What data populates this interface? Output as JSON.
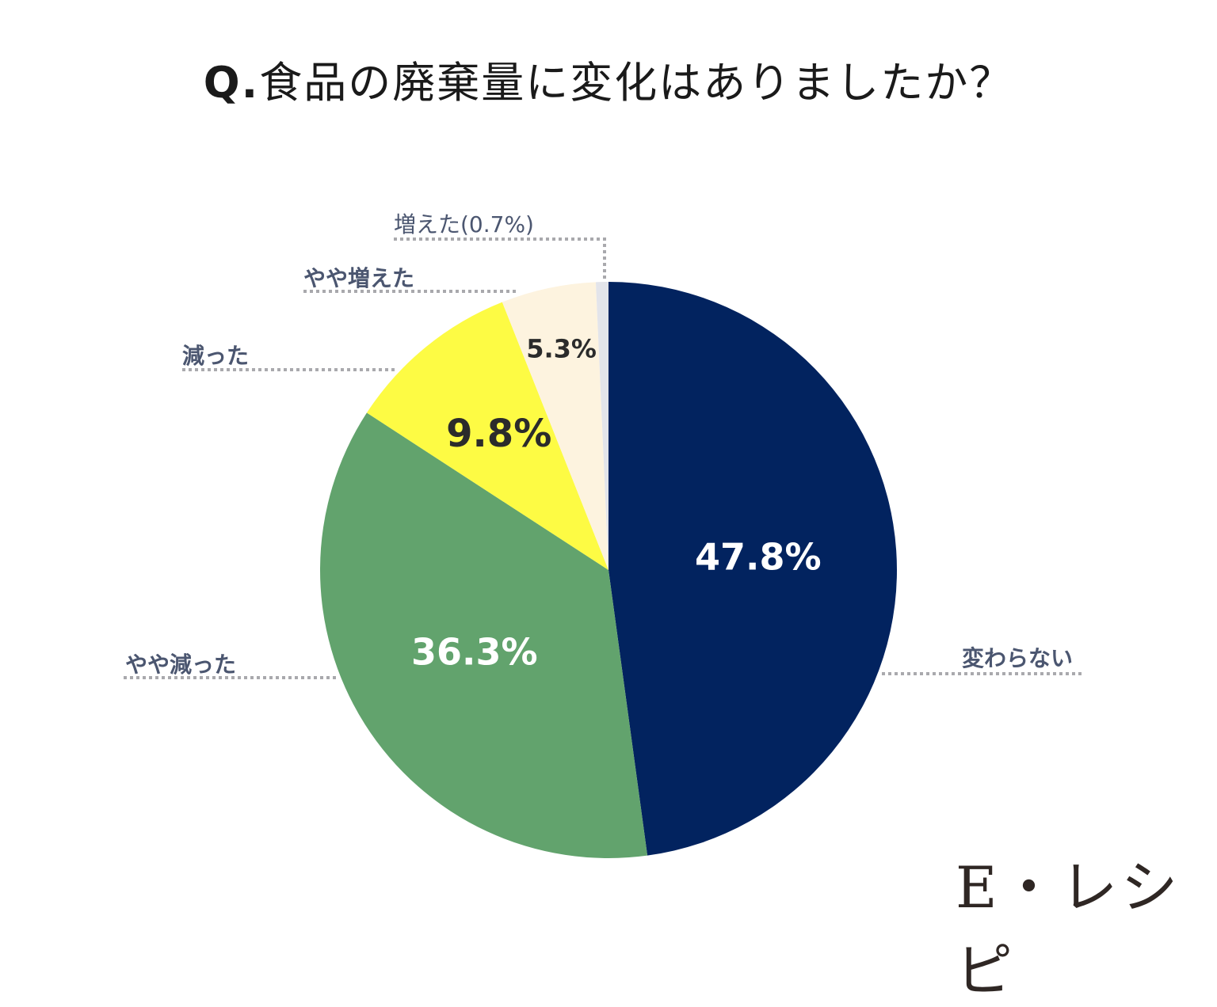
{
  "title_prefix": "Q.",
  "title_text": "食品の廃棄量に変化はありましたか？",
  "brand": "E・レシピ",
  "chart_data": {
    "type": "pie",
    "title": "Q.食品の廃棄量に変化はありましたか？",
    "start": "12 o'clock, clockwise",
    "slices": [
      {
        "label": "変わらない",
        "value": 47.8,
        "value_label": "47.8%",
        "color": "#02235f",
        "text_color": "#ffffff"
      },
      {
        "label": "やや減った",
        "value": 36.3,
        "value_label": "36.3%",
        "color": "#62a36d",
        "text_color": "#ffffff"
      },
      {
        "label": "減った",
        "value": 9.8,
        "value_label": "9.8%",
        "color": "#fdfb44",
        "text_color": "#2b2b2b"
      },
      {
        "label": "やや増えた",
        "value": 5.3,
        "value_label": "5.3%",
        "color": "#fdf3df",
        "text_color": "#2b2b2b"
      },
      {
        "label": "増えた(0.7%)",
        "value": 0.7,
        "value_label": "",
        "color": "#e3e4ea",
        "text_color": "#2b2b2b"
      }
    ]
  }
}
